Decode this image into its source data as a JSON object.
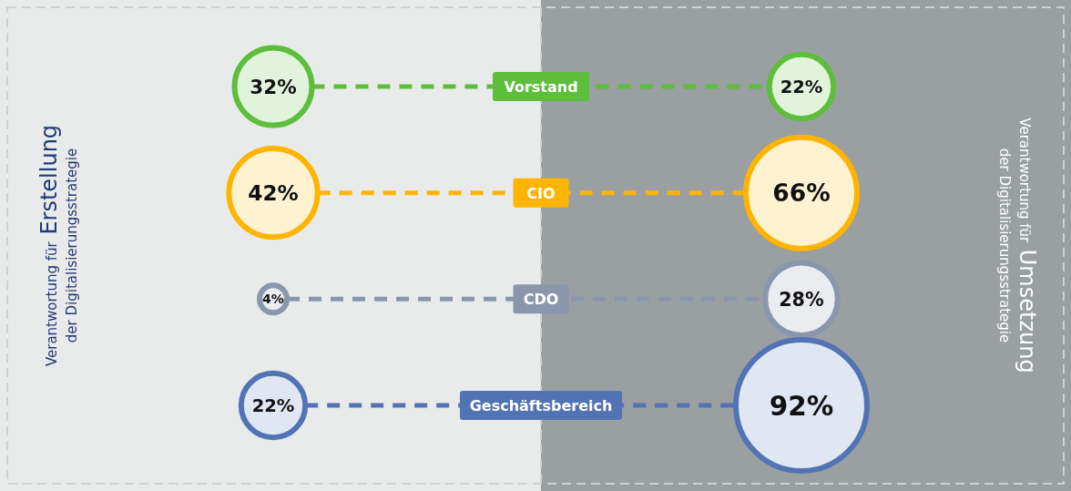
{
  "chart_data": {
    "type": "other",
    "categories": [
      "Vorstand",
      "CIO",
      "CDO",
      "Geschäftsbereich"
    ],
    "annotations": [
      "Verantwortung für Erstellung der Digitalisierungsstrategie",
      "Verantwortung für Umsetzung der Digitalisierungsstrategie"
    ],
    "series": [
      {
        "values": [
          32,
          42,
          4,
          22
        ],
        "value_labels": [
          "32%",
          "42%",
          "4%",
          "22%"
        ],
        "colors": [
          "#5dbe3c",
          "#ffb400",
          "#8a96ab",
          "#5274b4"
        ]
      },
      {
        "values": [
          22,
          66,
          28,
          92
        ],
        "value_labels": [
          "22%",
          "66%",
          "28%",
          "92%"
        ],
        "colors": [
          "#5dbe3c",
          "#ffb400",
          "#8a96ab",
          "#5274b4"
        ]
      }
    ]
  }
}
